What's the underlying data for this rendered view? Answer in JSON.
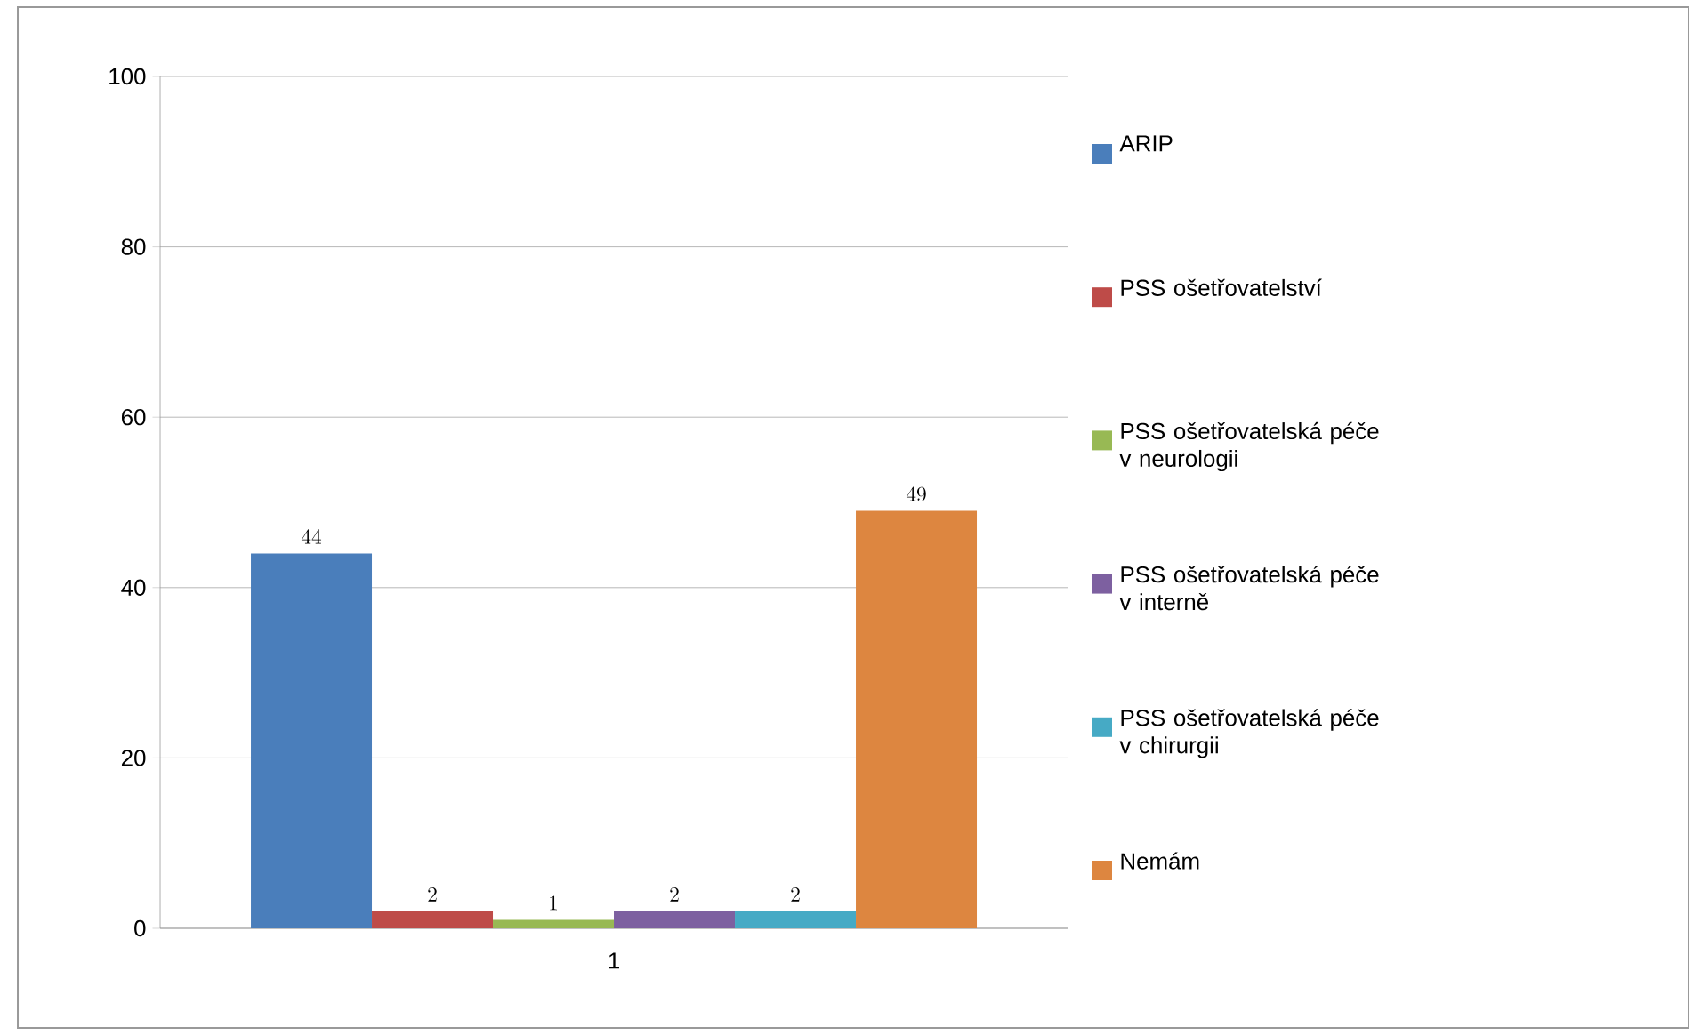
{
  "chart_data": {
    "type": "bar",
    "categories": [
      "1"
    ],
    "series": [
      {
        "name": "ARIP",
        "color": "#4a7ebb",
        "values": [
          44
        ]
      },
      {
        "name": "PSS ošetřovatelství",
        "color": "#be4b48",
        "values": [
          2
        ]
      },
      {
        "name": "PSS ošetřovatelská péče v neurologii",
        "color": "#98b954",
        "values": [
          1
        ]
      },
      {
        "name": "PSS ošetřovatelská péče v interně",
        "color": "#7d60a0",
        "values": [
          2
        ]
      },
      {
        "name": "PSS ošetřovatelská péče v chirurgii",
        "color": "#46aac5",
        "values": [
          2
        ]
      },
      {
        "name": "Nemám",
        "color": "#dd8640",
        "values": [
          49
        ]
      }
    ],
    "ylim": [
      0,
      100
    ],
    "yticks": [
      0,
      20,
      40,
      60,
      80,
      100
    ],
    "grid": "y",
    "legend": "right",
    "data_labels": true
  }
}
